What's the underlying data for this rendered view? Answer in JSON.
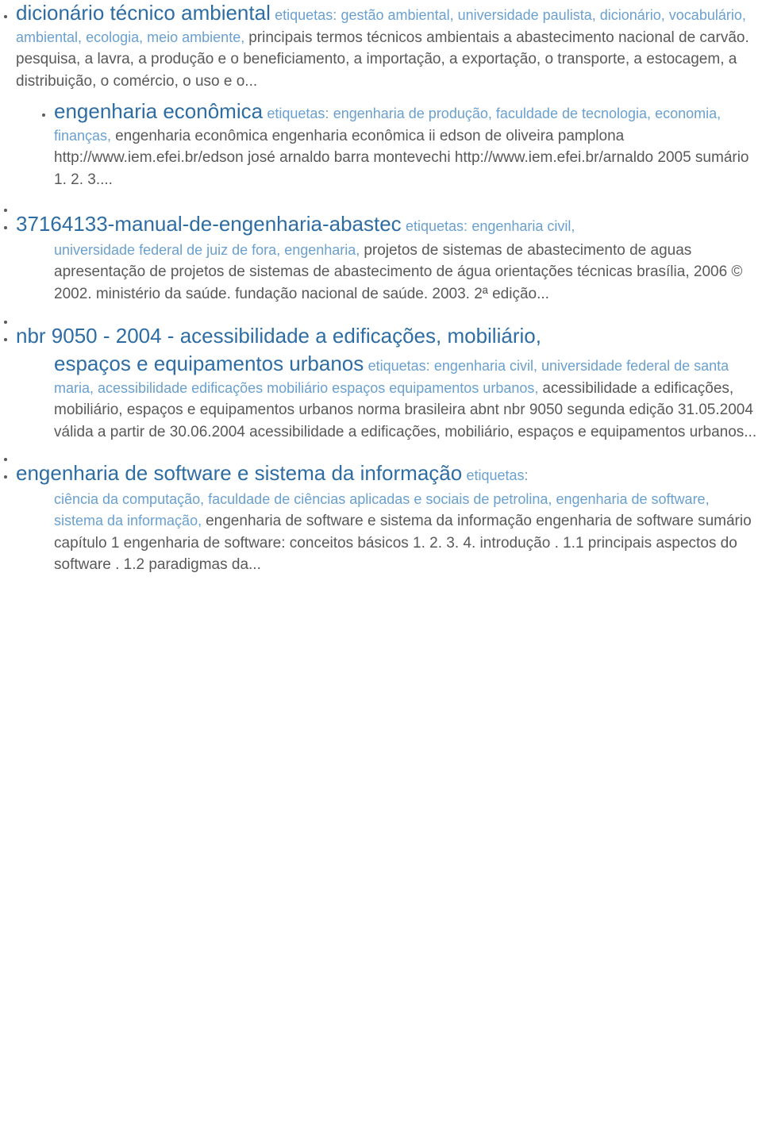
{
  "labels": {
    "tags_word": "etiquetas:"
  },
  "items": [
    {
      "title": "dicionário técnico ambiental",
      "tags": [
        "gestão ambiental",
        "universidade paulista",
        "dicionário",
        "vocabulário",
        "ambiental",
        "ecologia",
        "meio ambiente"
      ],
      "desc": "principais termos técnicos ambientais a abastecimento nacional de carvão. pesquisa, a lavra, a produção e o beneficiamento, a importação, a exportação, o transporte, a estocagem, a distribuição, o comércio, o uso e o...",
      "indented": false,
      "inner": [
        {
          "title": "engenharia econômica",
          "tags": [
            "engenharia de produção",
            "faculdade de tecnologia",
            "economia",
            "finanças"
          ],
          "desc": "engenharia econômica engenharia econômica ii edson de oliveira pamplona http://www.iem.efei.br/edson josé arnaldo barra montevechi http://www.iem.efei.br/arnaldo 2005 sumário 1. 2. 3...."
        }
      ]
    },
    {
      "title": "37164133-manual-de-engenharia-abastec",
      "tags": [
        "engenharia civil",
        "universidade federal de juiz de fora",
        "engenharia"
      ],
      "desc": "projetos de sistemas de abastecimento de aguas apresentação de projetos de sistemas de abastecimento de água orientações técnicas brasília, 2006 © 2002. ministério da saúde. fundação nacional de saúde. 2003. 2ª edição...",
      "indented": true
    },
    {
      "title": "nbr 9050 - 2004 - acessibilidade a edificações, mobiliário, espaços e equipamentos urbanos",
      "tags": [
        "engenharia civil",
        "universidade federal de santa maria",
        "acessibilidade edificações mobiliário espaços equipamentos urbanos"
      ],
      "desc": "acessibilidade a edificações, mobiliário, espaços e equipamentos urbanos norma brasileira abnt nbr 9050 segunda edição 31.05.2004 válida a partir de 30.06.2004 acessibilidade a edificações, mobiliário, espaços e equipamentos urbanos...",
      "indented": true,
      "title_indent_cont": "espaços e equipamentos urbanos"
    },
    {
      "title": "engenharia de software e sistema da informação",
      "tags": [
        "ciência da computação",
        "faculdade de ciências aplicadas e sociais de petrolina",
        "engenharia de software",
        "sistema da informação"
      ],
      "desc": "engenharia de software e sistema da informação engenharia de software sumário capítulo 1 engenharia de software: conceitos básicos 1. 2. 3. 4. introdução . 1.1 principais aspectos do software . 1.2 paradigmas da...",
      "indented": true
    }
  ]
}
